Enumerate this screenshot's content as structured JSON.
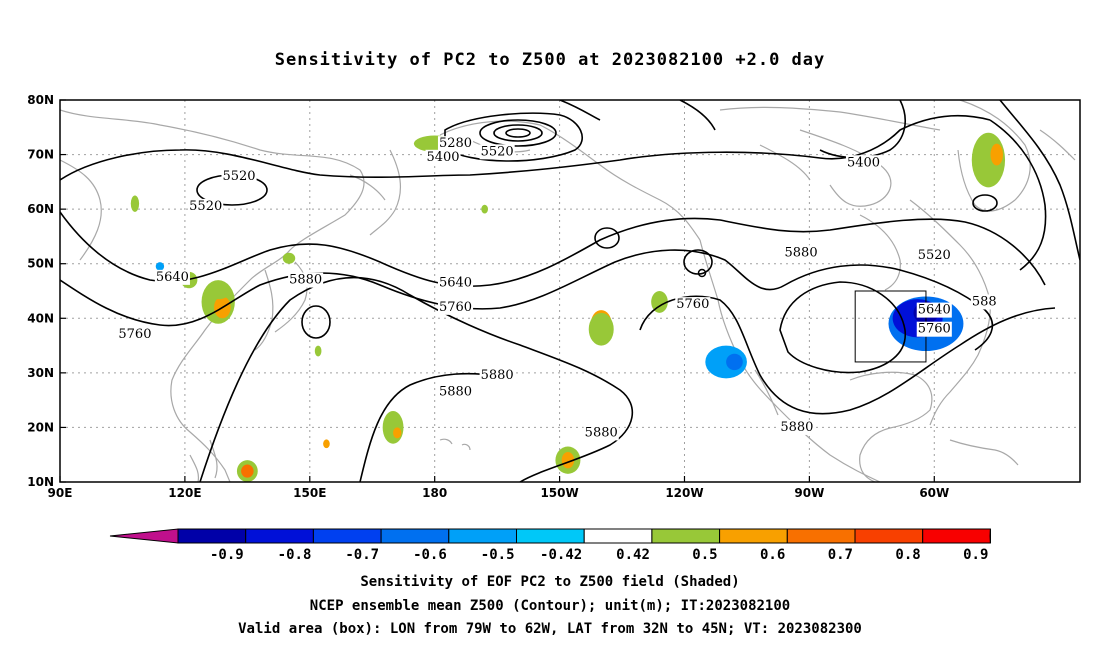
{
  "title": "Sensitivity of PC2 to Z500 at 2023082100 +2.0 day",
  "axes": {
    "lat_labels": [
      "80N",
      "70N",
      "60N",
      "50N",
      "40N",
      "30N",
      "20N",
      "10N"
    ],
    "lon_labels": [
      "90E",
      "120E",
      "150E",
      "180",
      "150W",
      "120W",
      "90W",
      "60W"
    ]
  },
  "contour_labels": [
    {
      "text": "5280",
      "lon": -175,
      "lat": 72
    },
    {
      "text": "5400",
      "lon": -178,
      "lat": 69.5
    },
    {
      "text": "5520",
      "lon": -165,
      "lat": 70.5
    },
    {
      "text": "5520",
      "lon": 133,
      "lat": 66
    },
    {
      "text": "5520",
      "lon": 125,
      "lat": 60.5
    },
    {
      "text": "5400",
      "lon": -77,
      "lat": 68.5
    },
    {
      "text": "5520",
      "lon": -60,
      "lat": 51.5
    },
    {
      "text": "5640",
      "lon": -60,
      "lat": 41.5
    },
    {
      "text": "5640",
      "lon": -175,
      "lat": 46.5
    },
    {
      "text": "5640",
      "lon": 117,
      "lat": 47.5
    },
    {
      "text": "5760",
      "lon": -175,
      "lat": 42
    },
    {
      "text": "5760",
      "lon": 108,
      "lat": 37
    },
    {
      "text": "5760",
      "lon": -118,
      "lat": 42.5
    },
    {
      "text": "5760",
      "lon": -60,
      "lat": 38
    },
    {
      "text": "5880",
      "lon": 149,
      "lat": 47
    },
    {
      "text": "5880",
      "lon": -175,
      "lat": 26.5
    },
    {
      "text": "5880",
      "lon": -165,
      "lat": 29.5
    },
    {
      "text": "5880",
      "lon": -140,
      "lat": 19
    },
    {
      "text": "5880",
      "lon": -92,
      "lat": 52
    },
    {
      "text": "5880",
      "lon": -93,
      "lat": 20
    },
    {
      "text": "588",
      "lon": -48,
      "lat": 43
    }
  ],
  "colorbar": {
    "labels": [
      "-0.9",
      "-0.8",
      "-0.7",
      "-0.6",
      "-0.5",
      "-0.42",
      "0.42",
      "0.5",
      "0.6",
      "0.7",
      "0.8",
      "0.9"
    ],
    "colors": [
      "#0000a8",
      "#0010d8",
      "#0040f0",
      "#0070f0",
      "#00a0f8",
      "#00c8f8",
      "#ffffff",
      "#98c838",
      "#f8a000",
      "#f87000",
      "#f84000",
      "#f80000"
    ],
    "low_color": "#c0108c",
    "high_color": "#f8a0c8"
  },
  "captions": [
    "Sensitivity of EOF PC2 to Z500 field (Shaded)",
    "NCEP ensemble mean Z500 (Contour); unit(m); IT:2023082100",
    "Valid area (box): LON from 79W to 62W, LAT from 32N to 45N; VT: 2023082300"
  ],
  "valid_box": {
    "lon_min": -79,
    "lon_max": -62,
    "lat_min": 32,
    "lat_max": 45
  },
  "shaded_patches": [
    {
      "lon": -62,
      "lat": 39,
      "rx": 9,
      "ry": 5,
      "color": "#0070f0"
    },
    {
      "lon": -64,
      "lat": 40,
      "rx": 6,
      "ry": 3.5,
      "color": "#0010d8"
    },
    {
      "lon": -62,
      "lat": 41,
      "rx": 3,
      "ry": 2,
      "color": "#0000a8"
    },
    {
      "lon": -110,
      "lat": 32,
      "rx": 5,
      "ry": 3,
      "color": "#00a0f8"
    },
    {
      "lon": -108,
      "lat": 32,
      "rx": 2,
      "ry": 1.5,
      "color": "#0070f0"
    },
    {
      "lon": -180,
      "lat": 72,
      "rx": 5,
      "ry": 1.5,
      "color": "#98c838"
    },
    {
      "lon": -47,
      "lat": 69,
      "rx": 4,
      "ry": 5,
      "color": "#98c838"
    },
    {
      "lon": -45,
      "lat": 70,
      "rx": 1.5,
      "ry": 2,
      "color": "#f8a000"
    },
    {
      "lon": 128,
      "lat": 43,
      "rx": 4,
      "ry": 4,
      "color": "#98c838"
    },
    {
      "lon": 129,
      "lat": 42,
      "rx": 2,
      "ry": 2,
      "color": "#f8a000"
    },
    {
      "lon": 128,
      "lat": 45,
      "rx": 3,
      "ry": 1.5,
      "color": "#98c838"
    },
    {
      "lon": -140,
      "lat": 39,
      "rx": 2.5,
      "ry": 2.5,
      "color": "#f8a000"
    },
    {
      "lon": -140,
      "lat": 38,
      "rx": 3,
      "ry": 3,
      "color": "#98c838"
    },
    {
      "lon": -126,
      "lat": 43,
      "rx": 2,
      "ry": 2,
      "color": "#98c838"
    },
    {
      "lon": -148,
      "lat": 14,
      "rx": 3,
      "ry": 2.5,
      "color": "#98c838"
    },
    {
      "lon": -148,
      "lat": 14,
      "rx": 1.5,
      "ry": 1.5,
      "color": "#f8a000"
    },
    {
      "lon": 170,
      "lat": 20,
      "rx": 2.5,
      "ry": 3,
      "color": "#98c838"
    },
    {
      "lon": 171,
      "lat": 19,
      "rx": 1,
      "ry": 1,
      "color": "#f8a000"
    },
    {
      "lon": 135,
      "lat": 12,
      "rx": 2.5,
      "ry": 2,
      "color": "#98c838"
    },
    {
      "lon": 135,
      "lat": 12,
      "rx": 1.5,
      "ry": 1.2,
      "color": "#f87000"
    },
    {
      "lon": 145,
      "lat": 51,
      "rx": 1.5,
      "ry": 1,
      "color": "#98c838"
    },
    {
      "lon": 108,
      "lat": 61,
      "rx": 1,
      "ry": 1.5,
      "color": "#98c838"
    },
    {
      "lon": 114,
      "lat": 49.5,
      "rx": 1,
      "ry": 0.8,
      "color": "#00a0f8"
    },
    {
      "lon": 121,
      "lat": 47,
      "rx": 2,
      "ry": 1.5,
      "color": "#98c838"
    },
    {
      "lon": 152,
      "lat": 34,
      "rx": 0.8,
      "ry": 1,
      "color": "#98c838"
    },
    {
      "lon": 154,
      "lat": 17,
      "rx": 0.8,
      "ry": 0.8,
      "color": "#f8a000"
    },
    {
      "lon": -168,
      "lat": 60,
      "rx": 0.8,
      "ry": 0.8,
      "color": "#98c838"
    }
  ]
}
